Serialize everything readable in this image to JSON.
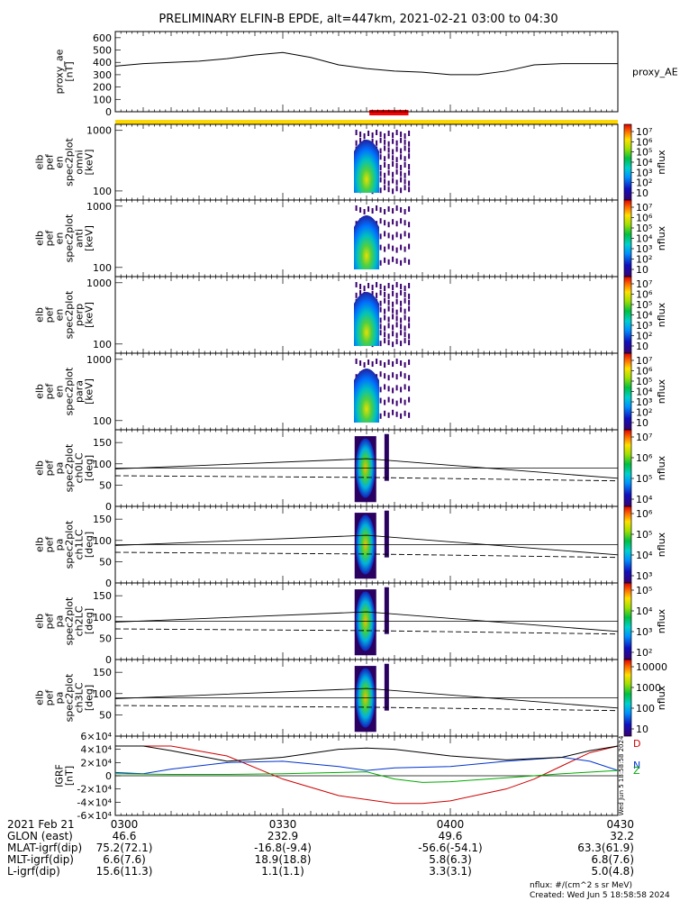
{
  "title": "PRELIMINARY ELFIN-B EPDE, alt=447km, 2021-02-21 03:00 to 04:30",
  "footer": {
    "unit": "nflux: #/(cm^2 s sr MeV)",
    "created": "Created: Wed Jun  5 18:58:58 2024"
  },
  "colors": {
    "science_bar": "#ffd700",
    "segment_bar": "#ff0000",
    "bx_line": "#cc0000",
    "by_line": "#0033cc",
    "bz_line": "#00aa00",
    "btotal_line": "#000000"
  },
  "chart_data": {
    "time_axis": {
      "start": "2021-02-21 03:00",
      "end": "2021-02-21 04:30",
      "segment_start": "03:45",
      "segment_end": "03:52"
    },
    "panels": [
      {
        "name": "proxy_ae",
        "type": "line",
        "ylabel": [
          "proxy_ae",
          "[nT]"
        ],
        "yticks": [
          "0",
          "100",
          "200",
          "300",
          "400",
          "500",
          "600"
        ],
        "ylim": [
          0,
          650
        ],
        "right_label": "proxy_AE",
        "series": [
          {
            "x_min": [
              0,
              5,
              10,
              15,
              20,
              25,
              30,
              35,
              40,
              45,
              50,
              55,
              60,
              65,
              70,
              75,
              80,
              85,
              90
            ],
            "y": [
              370,
              390,
              400,
              410,
              430,
              460,
              480,
              440,
              380,
              350,
              330,
              320,
              300,
              300,
              330,
              380,
              390,
              390,
              390
            ]
          }
        ]
      },
      {
        "name": "spectrogram-omni",
        "type": "heatmap",
        "ylabel": [
          "elb",
          "pef",
          "en",
          "spec2plot",
          "omni",
          "[keV]"
        ],
        "yticks": [
          "100",
          "1000"
        ],
        "colorbar": {
          "label": "nflux",
          "ticks": [
            "10",
            "10²",
            "10³",
            "10⁴",
            "10⁵",
            "10⁶",
            "10⁷"
          ]
        }
      },
      {
        "name": "spectrogram-anti",
        "type": "heatmap",
        "ylabel": [
          "elb",
          "pef",
          "en",
          "spec2plot",
          "anti",
          "[keV]"
        ],
        "yticks": [
          "100",
          "1000"
        ],
        "colorbar": {
          "label": "nflux",
          "ticks": [
            "10",
            "10²",
            "10³",
            "10⁴",
            "10⁵",
            "10⁶",
            "10⁷"
          ]
        }
      },
      {
        "name": "spectrogram-perp",
        "type": "heatmap",
        "ylabel": [
          "elb",
          "pef",
          "en",
          "spec2plot",
          "perp",
          "[keV]"
        ],
        "yticks": [
          "100",
          "1000"
        ],
        "colorbar": {
          "label": "nflux",
          "ticks": [
            "10",
            "10²",
            "10³",
            "10⁴",
            "10⁵",
            "10⁶",
            "10⁷"
          ]
        }
      },
      {
        "name": "spectrogram-para",
        "type": "heatmap",
        "ylabel": [
          "elb",
          "pef",
          "en",
          "spec2plot",
          "para",
          "[keV]"
        ],
        "yticks": [
          "100",
          "1000"
        ],
        "colorbar": {
          "label": "nflux",
          "ticks": [
            "10",
            "10²",
            "10³",
            "10⁴",
            "10⁵",
            "10⁶",
            "10⁷"
          ]
        }
      },
      {
        "name": "pitch-angle-ch0",
        "type": "heatmap",
        "ylabel": [
          "elb",
          "pef",
          "pa",
          "spec2plot",
          "ch0LC",
          "[deg]"
        ],
        "yticks": [
          "0",
          "50",
          "100",
          "150"
        ],
        "colorbar": {
          "label": "nflux",
          "ticks": [
            "10⁴",
            "10⁵",
            "10⁶",
            "10⁷"
          ]
        }
      },
      {
        "name": "pitch-angle-ch1",
        "type": "heatmap",
        "ylabel": [
          "elb",
          "pef",
          "pa",
          "spec2plot",
          "ch1LC",
          "[deg]"
        ],
        "yticks": [
          "0",
          "50",
          "100",
          "150"
        ],
        "colorbar": {
          "label": "nflux",
          "ticks": [
            "10³",
            "10⁴",
            "10⁵",
            "10⁶"
          ]
        }
      },
      {
        "name": "pitch-angle-ch2",
        "type": "heatmap",
        "ylabel": [
          "elb",
          "pef",
          "pa",
          "spec2plot",
          "ch2LC",
          "[deg]"
        ],
        "yticks": [
          "0",
          "50",
          "100",
          "150"
        ],
        "colorbar": {
          "label": "nflux",
          "ticks": [
            "10²",
            "10³",
            "10⁴",
            "10⁵"
          ]
        }
      },
      {
        "name": "pitch-angle-ch3",
        "type": "heatmap",
        "ylabel": [
          "elb",
          "pef",
          "pa",
          "spec2plot",
          "ch3LC",
          "[deg]"
        ],
        "yticks": [
          "50",
          "100",
          "150"
        ],
        "colorbar": {
          "label": "nflux",
          "ticks": [
            "10",
            "100",
            "1000",
            "10000"
          ]
        }
      },
      {
        "name": "igrf",
        "type": "line",
        "ylabel": [
          "IGRF",
          "[nT]"
        ],
        "yticks": [
          "-6×10⁴",
          "-4×10⁴",
          "-2×10⁴",
          "0",
          "2×10⁴",
          "4×10⁴",
          "6×10⁴"
        ],
        "ylim": [
          -60000,
          60000
        ],
        "legend": [
          "D",
          "N",
          "Z"
        ],
        "side_stamp": "Wed Jun  5 18:58:58 2024",
        "series": [
          {
            "name": "D",
            "color": "#cc0000",
            "x_min": [
              0,
              10,
              20,
              30,
              40,
              50,
              55,
              60,
              70,
              75,
              80,
              85,
              90
            ],
            "y": [
              45000,
              45000,
              30000,
              -5000,
              -30000,
              -42000,
              -42000,
              -38000,
              -20000,
              -5000,
              15000,
              35000,
              45000
            ]
          },
          {
            "name": "N",
            "color": "#0033cc",
            "x_min": [
              0,
              5,
              10,
              20,
              30,
              40,
              45,
              50,
              60,
              70,
              80,
              85,
              90
            ],
            "y": [
              5000,
              3000,
              10000,
              20000,
              22000,
              14000,
              8000,
              12000,
              14000,
              22000,
              28000,
              22000,
              8000
            ]
          },
          {
            "name": "Z",
            "color": "#00aa00",
            "x_min": [
              0,
              10,
              20,
              30,
              40,
              45,
              50,
              55,
              60,
              70,
              80,
              90
            ],
            "y": [
              3000,
              2000,
              2000,
              3000,
              5000,
              6000,
              -5000,
              -10000,
              -9000,
              -3000,
              3000,
              8000
            ]
          },
          {
            "name": "B",
            "color": "#000000",
            "x_min": [
              0,
              5,
              10,
              20,
              30,
              40,
              45,
              50,
              60,
              70,
              80,
              85,
              90
            ],
            "y": [
              45000,
              45000,
              38000,
              22000,
              28000,
              40000,
              42000,
              40000,
              30000,
              24000,
              28000,
              38000,
              45000
            ]
          }
        ]
      }
    ],
    "ephemeris": {
      "row_labels": [
        "2021 Feb 21",
        "GLON (east)",
        "MLAT-igrf(dip)",
        "MLT-igrf(dip)",
        "L-igrf(dip)"
      ],
      "columns": [
        {
          "time": "0300",
          "glon": "46.6",
          "mlat": "75.2(72.1)",
          "mlt": "6.6(7.6)",
          "l": "15.6(11.3)"
        },
        {
          "time": "0330",
          "glon": "232.9",
          "mlat": "-16.8(-9.4)",
          "mlt": "18.9(18.8)",
          "l": "1.1(1.1)"
        },
        {
          "time": "0400",
          "glon": "49.6",
          "mlat": "-56.6(-54.1)",
          "mlt": "5.8(6.3)",
          "l": "3.3(3.1)"
        },
        {
          "time": "0430",
          "glon": "32.2",
          "mlat": "63.3(61.9)",
          "mlt": "6.8(7.6)",
          "l": "5.0(4.8)"
        }
      ]
    }
  }
}
